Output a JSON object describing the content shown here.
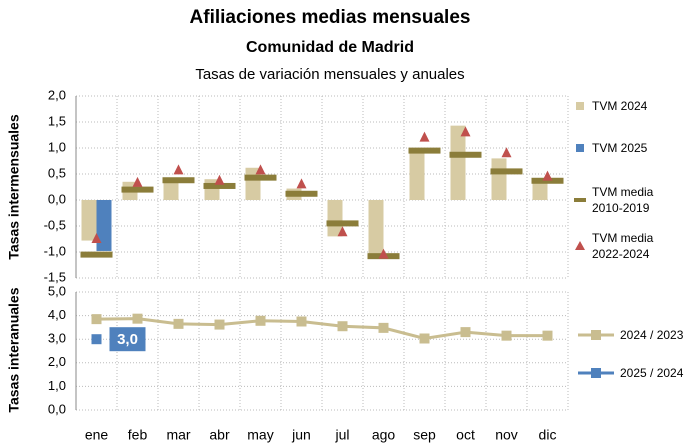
{
  "chart_data": [
    {
      "type": "bar",
      "title": "Afiliaciones medias mensuales",
      "subtitle": "Comunidad de Madrid",
      "note": "Tasas de variación mensuales y anuales",
      "y_label": "Tasas intermensuales",
      "categories": [
        "ene",
        "feb",
        "mar",
        "abr",
        "may",
        "jun",
        "jul",
        "ago",
        "sep",
        "oct",
        "nov",
        "dic"
      ],
      "ylim": [
        -1.5,
        2.0
      ],
      "yticks": [
        {
          "value": 2.0,
          "label": "2,0"
        },
        {
          "value": 1.5,
          "label": "1,5"
        },
        {
          "value": 1.0,
          "label": "1,0"
        },
        {
          "value": 0.5,
          "label": "0,5"
        },
        {
          "value": 0,
          "label": "0,0"
        },
        {
          "value": -0.5,
          "label": "-0,5"
        },
        {
          "value": -1.0,
          "label": "-1,0"
        },
        {
          "value": -1.5,
          "label": "-1,5"
        }
      ],
      "grid": true,
      "series": [
        {
          "name": "TVM 2024",
          "mark": "bar",
          "color": "#d7cba3",
          "values": [
            -0.78,
            0.35,
            0.42,
            0.4,
            0.62,
            0.22,
            -0.7,
            -1.05,
            1.0,
            1.43,
            0.8,
            0.42
          ]
        },
        {
          "name": "TVM 2025",
          "mark": "bar",
          "color": "#4f81bd",
          "values": [
            -0.98,
            null,
            null,
            null,
            null,
            null,
            null,
            null,
            null,
            null,
            null,
            null
          ]
        },
        {
          "name": "TVM media 2010-2019",
          "mark": "dash",
          "color": "#8b7d3a",
          "values": [
            -1.05,
            0.2,
            0.38,
            0.27,
            0.43,
            0.12,
            -0.45,
            -1.08,
            0.95,
            0.87,
            0.55,
            0.37
          ]
        },
        {
          "name": "TVM media 2022-2024",
          "mark": "triangle",
          "color": "#c0504d",
          "values": [
            -0.75,
            0.33,
            0.57,
            0.37,
            0.57,
            0.3,
            -0.62,
            -1.05,
            1.2,
            1.3,
            0.9,
            0.45
          ]
        }
      ]
    },
    {
      "type": "line",
      "y_label": "Tasas interanuales",
      "categories": [
        "ene",
        "feb",
        "mar",
        "abr",
        "may",
        "jun",
        "jul",
        "ago",
        "sep",
        "oct",
        "nov",
        "dic"
      ],
      "ylim": [
        0,
        5.0
      ],
      "yticks": [
        {
          "value": 5.0,
          "label": "5,0"
        },
        {
          "value": 4.0,
          "label": "4,0"
        },
        {
          "value": 3.0,
          "label": "3,0"
        },
        {
          "value": 2.0,
          "label": "2,0"
        },
        {
          "value": 1.0,
          "label": "1,0"
        },
        {
          "value": 0,
          "label": "0,0"
        }
      ],
      "grid": true,
      "series": [
        {
          "name": "2024 / 2023",
          "color": "#c9bd90",
          "values": [
            3.85,
            3.87,
            3.65,
            3.62,
            3.78,
            3.75,
            3.55,
            3.48,
            3.03,
            3.3,
            3.15,
            3.15
          ]
        },
        {
          "name": "2025 / 2024",
          "color": "#4f81bd",
          "values": [
            3.0,
            null,
            null,
            null,
            null,
            null,
            null,
            null,
            null,
            null,
            null,
            null
          ],
          "value_labels": [
            "3,0",
            null,
            null,
            null,
            null,
            null,
            null,
            null,
            null,
            null,
            null,
            null
          ]
        }
      ]
    }
  ]
}
